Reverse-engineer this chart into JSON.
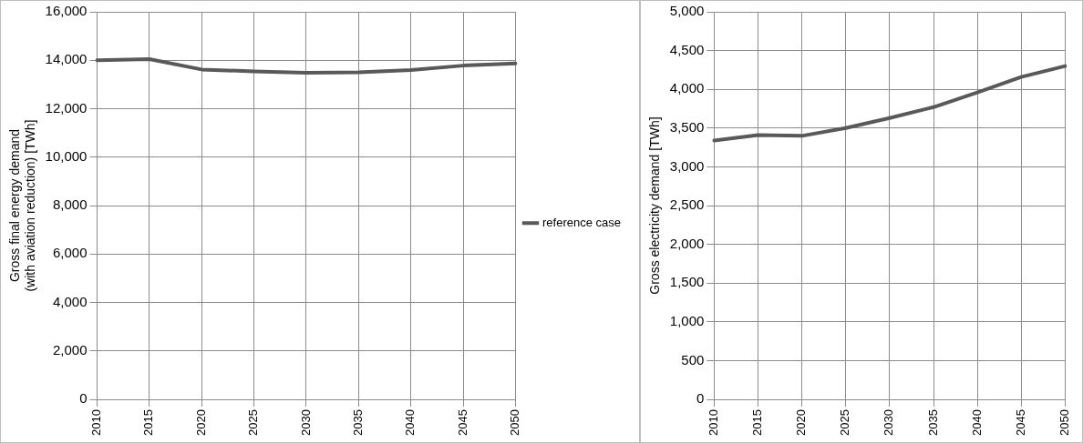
{
  "chart_data": [
    {
      "type": "line",
      "ylabel": "Gross final energy demand (with aviation reduction) [TWh]",
      "categories": [
        "2010",
        "2015",
        "2020",
        "2025",
        "2030",
        "2035",
        "2040",
        "2045",
        "2050"
      ],
      "series": [
        {
          "name": "reference case",
          "color": "#595959",
          "values": [
            14000,
            14050,
            13620,
            13540,
            13480,
            13500,
            13600,
            13780,
            13870
          ]
        }
      ],
      "ylim": [
        0,
        16000
      ],
      "yticks": [
        {
          "value": 0,
          "label": "0"
        },
        {
          "value": 2000,
          "label": "2,000"
        },
        {
          "value": 4000,
          "label": "4,000"
        },
        {
          "value": 6000,
          "label": "6,000"
        },
        {
          "value": 8000,
          "label": "8,000"
        },
        {
          "value": 10000,
          "label": "10,000"
        },
        {
          "value": 12000,
          "label": "12,000"
        },
        {
          "value": 14000,
          "label": "14,000"
        },
        {
          "value": 16000,
          "label": "16,000"
        }
      ],
      "grid": true,
      "legend": "right",
      "marker": "none"
    },
    {
      "type": "line",
      "ylabel": "Gross electricity demand [TWh]",
      "categories": [
        "2010",
        "2015",
        "2020",
        "2025",
        "2030",
        "2035",
        "2040",
        "2045",
        "2050"
      ],
      "series": [
        {
          "color": "#595959",
          "values": [
            3340,
            3410,
            3400,
            3500,
            3630,
            3770,
            3960,
            4160,
            4300
          ]
        }
      ],
      "ylim": [
        0,
        5000
      ],
      "yticks": [
        {
          "value": 0,
          "label": "0"
        },
        {
          "value": 500,
          "label": "500"
        },
        {
          "value": 1000,
          "label": "1,000"
        },
        {
          "value": 1500,
          "label": "1,500"
        },
        {
          "value": 2000,
          "label": "2,000"
        },
        {
          "value": 2500,
          "label": "2,500"
        },
        {
          "value": 3000,
          "label": "3,000"
        },
        {
          "value": 3500,
          "label": "3,500"
        },
        {
          "value": 4000,
          "label": "4,000"
        },
        {
          "value": 4500,
          "label": "4,500"
        },
        {
          "value": 5000,
          "label": "5,000"
        }
      ],
      "grid": true,
      "marker": "none"
    }
  ]
}
